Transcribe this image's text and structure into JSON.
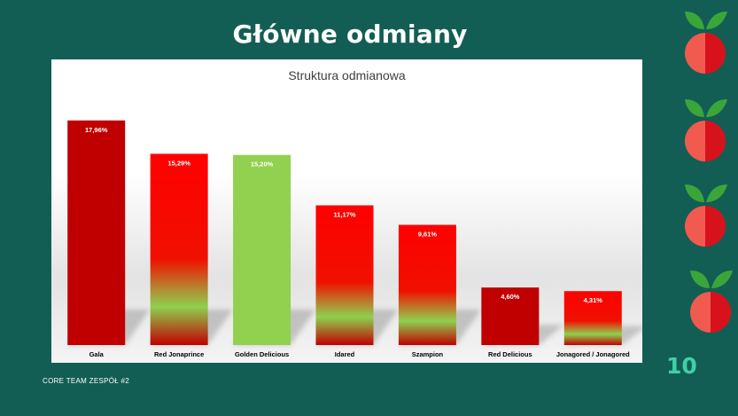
{
  "slide": {
    "title": "Główne odmiany",
    "footer": "CORE TEAM ZESPÓŁ #2",
    "page_number": "10"
  },
  "colors": {
    "background": "#135e54",
    "dark_red": "#c00000",
    "red": "#ff0000",
    "green": "#92d050",
    "apple_light": "#f05a4f",
    "apple_dark": "#d8121c",
    "leaf": "#3aa63a"
  },
  "icons": [
    "apple-icon",
    "apple-icon",
    "apple-icon",
    "apple-icon"
  ],
  "chart_data": {
    "type": "bar",
    "title": "Struktura odmianowa",
    "categories": [
      "Gala",
      "Red Jonaprince",
      "Golden Delicious",
      "Idared",
      "Szampion",
      "Red Delicious",
      "Jonagored / Jonagored"
    ],
    "values": [
      17.96,
      15.29,
      15.2,
      11.17,
      9.61,
      4.6,
      4.31
    ],
    "data_labels": [
      "17,96%",
      "15,29%",
      "15,20%",
      "11,17%",
      "9,61%",
      "4,60%",
      "4,31%"
    ],
    "bar_styles": [
      "dark-red",
      "red-gradient",
      "green",
      "red-gradient",
      "red-gradient",
      "dark-red",
      "red-gradient"
    ],
    "ylim": [
      0,
      20
    ],
    "grid": false,
    "legend": "none"
  }
}
